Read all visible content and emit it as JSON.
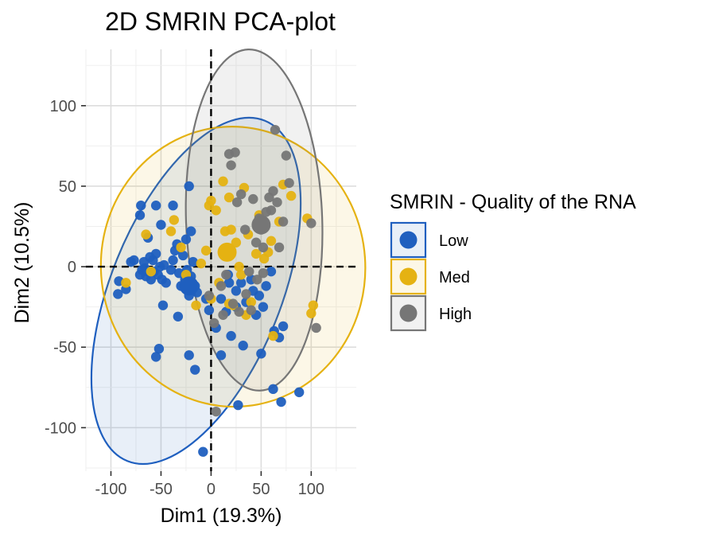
{
  "chart_data": {
    "type": "scatter",
    "title": "2D SMRIN PCA-plot",
    "xlabel": "Dim1 (19.3%)",
    "ylabel": "Dim2 (10.5%)",
    "xlim": [
      -125,
      145
    ],
    "ylim": [
      -127,
      135
    ],
    "xticks": [
      -100,
      -50,
      0,
      50,
      100
    ],
    "yticks": [
      -100,
      -50,
      0,
      50,
      100
    ],
    "xtick_labels": [
      "-100",
      "-50",
      "0",
      "50",
      "100"
    ],
    "ytick_labels": [
      "-100",
      "-50",
      "0",
      "50",
      "100"
    ],
    "grid": true,
    "reference_lines": {
      "x": 0,
      "y": 0,
      "style": "dashed"
    },
    "legend": {
      "title": "SMRIN - Quality of the RNA",
      "position": "right"
    },
    "series": [
      {
        "name": "Low",
        "color": "#1f5fbf",
        "centroid": [
          -22,
          -12
        ],
        "ellipse": {
          "center": [
            -15,
            -15
          ],
          "rx": 85,
          "ry": 114,
          "angle_deg": 22
        },
        "points": [
          [
            -92,
            -9
          ],
          [
            -93,
            -17
          ],
          [
            -85,
            -14
          ],
          [
            -80,
            3
          ],
          [
            -77,
            4
          ],
          [
            -71,
            -5
          ],
          [
            -69,
            -2
          ],
          [
            -67,
            3
          ],
          [
            -66,
            -1
          ],
          [
            -65,
            -6
          ],
          [
            -63,
            -3
          ],
          [
            -61,
            6
          ],
          [
            -60,
            -8
          ],
          [
            -58,
            4
          ],
          [
            -57,
            -3
          ],
          [
            -55,
            8
          ],
          [
            -53,
            -5
          ],
          [
            -51,
            0
          ],
          [
            -49,
            -8
          ],
          [
            -47,
            1
          ],
          [
            -70,
            38
          ],
          [
            -71,
            32
          ],
          [
            -63,
            18
          ],
          [
            -55,
            38
          ],
          [
            -50,
            26
          ],
          [
            -45,
            -10
          ],
          [
            -40,
            -2
          ],
          [
            -38,
            4
          ],
          [
            -36,
            10
          ],
          [
            -34,
            14
          ],
          [
            -32,
            -4
          ],
          [
            -30,
            -12
          ],
          [
            -28,
            7
          ],
          [
            -26,
            -8
          ],
          [
            -24,
            -2
          ],
          [
            -22,
            -18
          ],
          [
            -20,
            -6
          ],
          [
            -18,
            3
          ],
          [
            -16,
            -12
          ],
          [
            -14,
            -16
          ],
          [
            -22,
            50
          ],
          [
            -25,
            17
          ],
          [
            -20,
            22
          ],
          [
            -38,
            38
          ],
          [
            -48,
            -24
          ],
          [
            -33,
            -31
          ],
          [
            -52,
            -51
          ],
          [
            -55,
            -56
          ],
          [
            -22,
            -55
          ],
          [
            -16,
            -64
          ],
          [
            -8,
            -115
          ],
          [
            -5,
            -20
          ],
          [
            -2,
            -27
          ],
          [
            5,
            -38
          ],
          [
            10,
            -20
          ],
          [
            15,
            -28
          ],
          [
            18,
            -10
          ],
          [
            20,
            -43
          ],
          [
            25,
            -15
          ],
          [
            30,
            -10
          ],
          [
            32,
            -49
          ],
          [
            35,
            -22
          ],
          [
            40,
            -8
          ],
          [
            42,
            -15
          ],
          [
            45,
            -30
          ],
          [
            48,
            -18
          ],
          [
            50,
            -54
          ],
          [
            52,
            -25
          ],
          [
            55,
            -12
          ],
          [
            60,
            -3
          ],
          [
            63,
            -40
          ],
          [
            68,
            -44
          ],
          [
            72,
            -37
          ],
          [
            62,
            -76
          ],
          [
            70,
            -84
          ],
          [
            88,
            -78
          ],
          [
            27,
            -86
          ],
          [
            10,
            -55
          ],
          [
            17,
            -5
          ],
          [
            25,
            -25
          ]
        ]
      },
      {
        "name": "Med",
        "color": "#e5b212",
        "centroid": [
          16,
          9
        ],
        "ellipse": {
          "center": [
            22,
            0
          ],
          "rx": 132,
          "ry": 87,
          "angle_deg": -4
        },
        "points": [
          [
            -85,
            -10
          ],
          [
            -40,
            22
          ],
          [
            -37,
            29
          ],
          [
            -30,
            12
          ],
          [
            -25,
            -5
          ],
          [
            -15,
            -24
          ],
          [
            -10,
            2
          ],
          [
            -5,
            10
          ],
          [
            -2,
            38
          ],
          [
            0,
            41
          ],
          [
            5,
            35
          ],
          [
            8,
            -10
          ],
          [
            12,
            53
          ],
          [
            14,
            22
          ],
          [
            18,
            -23
          ],
          [
            20,
            23
          ],
          [
            25,
            15
          ],
          [
            30,
            -5
          ],
          [
            33,
            49
          ],
          [
            37,
            20
          ],
          [
            40,
            -22
          ],
          [
            45,
            8
          ],
          [
            48,
            32
          ],
          [
            53,
            5
          ],
          [
            57,
            9
          ],
          [
            60,
            16
          ],
          [
            62,
            -43
          ],
          [
            68,
            28
          ],
          [
            72,
            51
          ],
          [
            80,
            44
          ],
          [
            100,
            -29
          ],
          [
            102,
            -24
          ],
          [
            96,
            30
          ],
          [
            18,
            43
          ],
          [
            0,
            -20
          ],
          [
            -60,
            -3
          ],
          [
            -65,
            20
          ],
          [
            22,
            -24
          ],
          [
            28,
            0
          ],
          [
            35,
            -30
          ]
        ]
      },
      {
        "name": "High",
        "color": "#767676",
        "centroid": [
          50,
          26
        ],
        "ellipse": {
          "center": [
            43,
            29
          ],
          "rx": 68,
          "ry": 106,
          "angle_deg": -2
        },
        "points": [
          [
            -2,
            -18
          ],
          [
            3,
            -35
          ],
          [
            5,
            -90
          ],
          [
            10,
            -12
          ],
          [
            15,
            -5
          ],
          [
            18,
            70
          ],
          [
            20,
            63
          ],
          [
            22,
            -23
          ],
          [
            24,
            71
          ],
          [
            26,
            40
          ],
          [
            30,
            45
          ],
          [
            35,
            -17
          ],
          [
            38,
            -3
          ],
          [
            42,
            42
          ],
          [
            45,
            15
          ],
          [
            48,
            30
          ],
          [
            50,
            23
          ],
          [
            52,
            -4
          ],
          [
            55,
            34
          ],
          [
            58,
            43
          ],
          [
            60,
            35
          ],
          [
            62,
            47
          ],
          [
            64,
            85
          ],
          [
            66,
            40
          ],
          [
            68,
            12
          ],
          [
            72,
            28
          ],
          [
            75,
            69
          ],
          [
            78,
            52
          ],
          [
            100,
            27
          ],
          [
            105,
            -38
          ],
          [
            12,
            -30
          ],
          [
            28,
            -28
          ],
          [
            40,
            -27
          ],
          [
            46,
            -8
          ],
          [
            34,
            23
          ],
          [
            52,
            12
          ]
        ]
      }
    ]
  }
}
